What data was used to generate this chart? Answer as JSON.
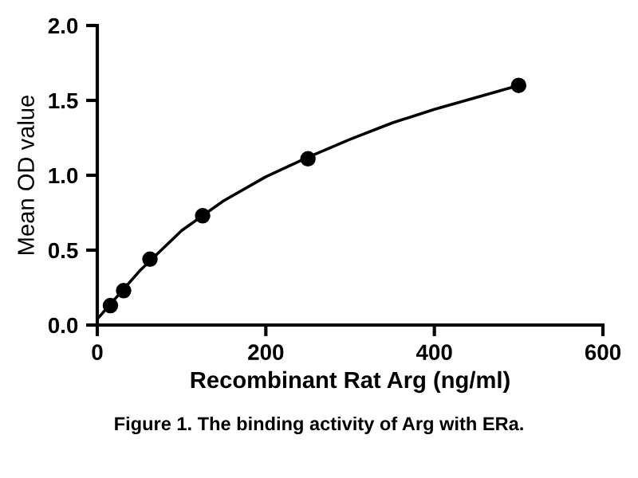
{
  "chart_data": {
    "type": "scatter",
    "xlabel": "Recombinant Rat Arg (ng/ml)",
    "ylabel": "Mean OD value",
    "annotations": [
      "Figure 1. The binding activity of Arg with ERa."
    ],
    "series": [
      {
        "color": "#000000",
        "marker": "circle",
        "x": [
          15.6,
          31.25,
          62.5,
          125,
          250,
          500
        ],
        "values": [
          0.13,
          0.23,
          0.44,
          0.73,
          1.11,
          1.6
        ]
      },
      {
        "type": "line",
        "color": "#000000",
        "marker": "none",
        "x": [
          0,
          25,
          50,
          100,
          150,
          200,
          250,
          300,
          350,
          400,
          450,
          500
        ],
        "values": [
          0.04,
          0.2,
          0.36,
          0.63,
          0.83,
          0.99,
          1.12,
          1.24,
          1.35,
          1.44,
          1.52,
          1.6
        ]
      }
    ],
    "xlim": [
      0,
      600
    ],
    "xticks": [
      0,
      200,
      400,
      600
    ],
    "ylim": [
      0,
      2
    ],
    "yticks": [
      {
        "value": 0,
        "label": "0.0"
      },
      {
        "value": 0.5,
        "label": "0.5"
      },
      {
        "value": 1,
        "label": "1.0"
      },
      {
        "value": 1.5,
        "label": "1.5"
      },
      {
        "value": 2,
        "label": "2.0"
      }
    ],
    "grid": false,
    "legend": false
  }
}
